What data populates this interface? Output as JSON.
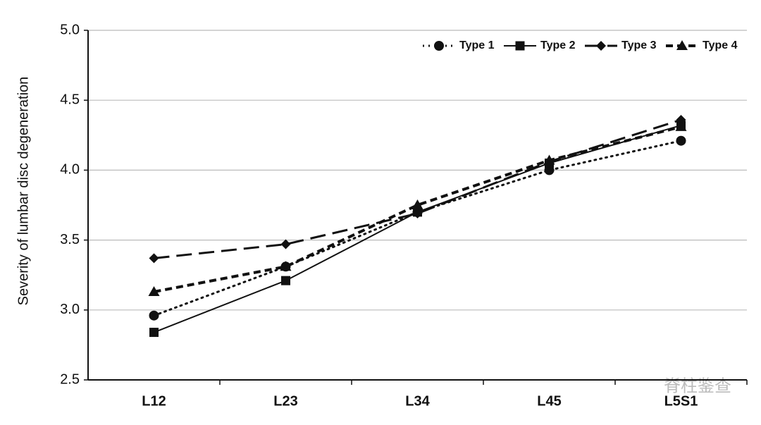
{
  "chart_data": {
    "type": "line",
    "ylabel": "Severity of lumbar disc degeneration",
    "categories": [
      "L12",
      "L23",
      "L34",
      "L45",
      "L5S1"
    ],
    "series": [
      {
        "name": "Type 1",
        "color": "#111111",
        "marker": "circle",
        "dash": "dotted",
        "values": [
          2.96,
          3.31,
          3.7,
          4.0,
          4.21
        ]
      },
      {
        "name": "Type 2",
        "color": "#111111",
        "marker": "square",
        "dash": "solid",
        "values": [
          2.84,
          3.21,
          3.7,
          4.05,
          4.32
        ]
      },
      {
        "name": "Type 3",
        "color": "#111111",
        "marker": "diamond",
        "dash": "longdash",
        "values": [
          3.37,
          3.47,
          3.69,
          4.06,
          4.36
        ]
      },
      {
        "name": "Type 4",
        "color": "#111111",
        "marker": "triangle",
        "dash": "dashed",
        "values": [
          3.13,
          3.31,
          3.75,
          4.07,
          4.31
        ]
      }
    ],
    "ylim": [
      2.5,
      5.0
    ],
    "yticks": [
      {
        "value": 2.5,
        "label": "2.5"
      },
      {
        "value": 3.0,
        "label": "3.0"
      },
      {
        "value": 3.5,
        "label": "3.5"
      },
      {
        "value": 4.0,
        "label": "4.0"
      },
      {
        "value": 4.5,
        "label": "4.5"
      },
      {
        "value": 5.0,
        "label": "5.0"
      }
    ],
    "grid": true,
    "legend": "top-right",
    "watermark": "脊柱鉴查"
  }
}
